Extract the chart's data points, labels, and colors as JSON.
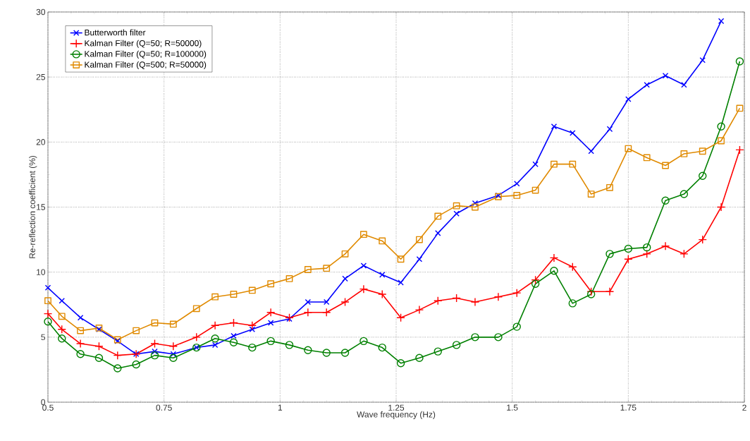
{
  "chart_data": {
    "type": "line",
    "xlabel": "Wave frequency (Hz)",
    "ylabel": "Re-reflection coefficient (%)",
    "x": [
      0.5,
      0.53,
      0.57,
      0.61,
      0.65,
      0.69,
      0.73,
      0.77,
      0.82,
      0.86,
      0.9,
      0.94,
      0.98,
      1.02,
      1.06,
      1.1,
      1.14,
      1.18,
      1.22,
      1.26,
      1.3,
      1.34,
      1.38,
      1.42,
      1.47,
      1.51,
      1.55,
      1.59,
      1.63,
      1.67,
      1.71,
      1.75,
      1.79,
      1.83,
      1.87,
      1.91,
      1.95,
      1.99
    ],
    "xlim": [
      0.5,
      2
    ],
    "ylim": [
      0,
      30
    ],
    "xticks": [
      0.5,
      0.75,
      1,
      1.25,
      1.5,
      1.75,
      2
    ],
    "yticks": [
      0,
      5,
      10,
      15,
      20,
      25,
      30
    ],
    "grid": true,
    "legend": "top left",
    "line_style": "solid",
    "series": [
      {
        "name": "Butterworth filter",
        "color": "#0000ff",
        "marker": "cross",
        "values": [
          8.8,
          7.8,
          6.5,
          5.6,
          4.7,
          3.7,
          3.9,
          3.7,
          4.2,
          4.4,
          5.1,
          5.6,
          6.1,
          6.4,
          7.7,
          7.7,
          9.5,
          10.5,
          9.8,
          9.2,
          11.0,
          13.0,
          14.5,
          15.3,
          15.9,
          16.8,
          18.3,
          21.2,
          20.7,
          19.3,
          21.0,
          23.3,
          24.4,
          25.1,
          24.4,
          26.3,
          29.3,
          null
        ]
      },
      {
        "name": "Kalman Filter (Q=50; R=50000)",
        "color": "#ff0000",
        "marker": "plus",
        "values": [
          6.8,
          5.6,
          4.5,
          4.3,
          3.6,
          3.7,
          4.5,
          4.3,
          5.0,
          5.9,
          6.1,
          5.9,
          6.9,
          6.5,
          6.9,
          6.9,
          7.7,
          8.7,
          8.3,
          6.5,
          7.1,
          7.8,
          8.0,
          7.7,
          8.1,
          8.4,
          9.4,
          11.1,
          10.4,
          8.5,
          8.5,
          11.0,
          11.4,
          12.0,
          11.4,
          12.5,
          15.0,
          19.4
        ]
      },
      {
        "name": "Kalman Filter (Q=50; R=100000)",
        "color": "#008000",
        "marker": "circle",
        "values": [
          6.2,
          4.9,
          3.7,
          3.4,
          2.6,
          2.9,
          3.6,
          3.4,
          4.2,
          4.9,
          4.6,
          4.2,
          4.7,
          4.4,
          4.0,
          3.8,
          3.8,
          4.7,
          4.2,
          3.0,
          3.4,
          3.9,
          4.4,
          5.0,
          5.0,
          5.8,
          9.1,
          10.1,
          7.6,
          8.3,
          11.4,
          11.8,
          11.9,
          15.5,
          16.0,
          17.4,
          21.2,
          26.2
        ]
      },
      {
        "name": "Kalman Filter (Q=500; R=50000)",
        "color": "#e08a00",
        "marker": "square",
        "values": [
          7.8,
          6.6,
          5.5,
          5.7,
          4.8,
          5.5,
          6.1,
          6.0,
          7.2,
          8.1,
          8.3,
          8.6,
          9.1,
          9.5,
          10.2,
          10.3,
          11.4,
          12.9,
          12.4,
          11.0,
          12.5,
          14.3,
          15.1,
          15.0,
          15.8,
          15.9,
          16.3,
          18.3,
          18.3,
          16.0,
          16.5,
          19.5,
          18.8,
          18.2,
          19.1,
          19.3,
          20.1,
          22.6
        ]
      }
    ]
  }
}
